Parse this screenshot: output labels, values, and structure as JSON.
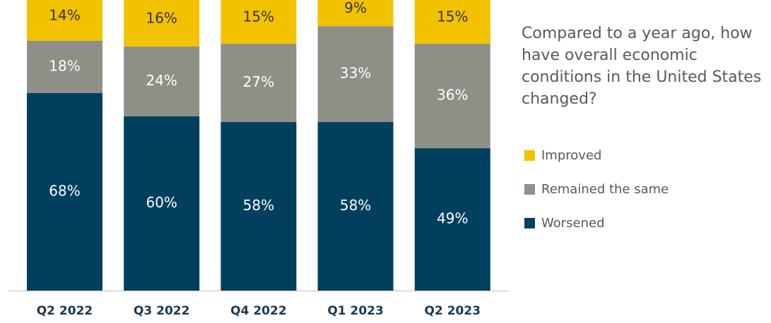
{
  "chart_data": {
    "type": "stacked_bar",
    "title": "Compared to a year ago, how have overall economic conditions in the United States changed?",
    "categories": [
      "Q2 2022",
      "Q3 2022",
      "Q4 2022",
      "Q1 2023",
      "Q2 2023"
    ],
    "ylim": [
      0,
      100
    ],
    "legend": "right",
    "series": [
      {
        "name": "Improved",
        "color": "#f2c200",
        "values": [
          14,
          16,
          15,
          9,
          15
        ],
        "value_labels": [
          "14%",
          "16%",
          "15%",
          "9%",
          "15%"
        ]
      },
      {
        "name": "Remained the same",
        "color": "#8f8f88",
        "values": [
          18,
          24,
          27,
          33,
          36
        ],
        "value_labels": [
          "18%",
          "24%",
          "27%",
          "33%",
          "36%"
        ]
      },
      {
        "name": "Worsened",
        "color": "#00405e",
        "values": [
          68,
          60,
          58,
          58,
          49
        ],
        "value_labels": [
          "68%",
          "60%",
          "58%",
          "58%",
          "49%"
        ]
      }
    ]
  }
}
